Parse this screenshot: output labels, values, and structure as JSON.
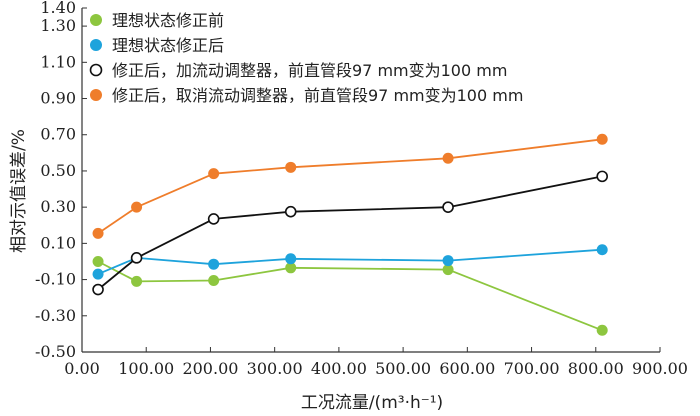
{
  "chart_data": {
    "type": "line",
    "xlabel": "工况流量/(m³·h⁻¹)",
    "ylabel": "相对示值误差/%",
    "xlim": [
      0,
      900
    ],
    "ylim": [
      -0.5,
      1.4
    ],
    "x_ticks": [
      "0.00",
      "100.00",
      "200.00",
      "300.00",
      "400.00",
      "500.00",
      "600.00",
      "700.00",
      "800.00",
      "900.00"
    ],
    "y_ticks": [
      "1.40",
      "1.30",
      "1.10",
      "0.90",
      "0.70",
      "0.50",
      "0.30",
      "0.10",
      "-0.10",
      "-0.30",
      "-0.50"
    ],
    "y_tick_values": [
      1.4,
      1.3,
      1.1,
      0.9,
      0.7,
      0.5,
      0.3,
      0.1,
      -0.1,
      -0.3,
      -0.5
    ],
    "grid": false,
    "legend_position": "top-left",
    "series": [
      {
        "name": "理想状态修正前",
        "color": "#8dc63f",
        "marker": "filled",
        "x": [
          25,
          85,
          205,
          325,
          570,
          810
        ],
        "y": [
          0.0,
          -0.11,
          -0.105,
          -0.035,
          -0.045,
          -0.38
        ]
      },
      {
        "name": "理想状态修正后",
        "color": "#1ea3dc",
        "marker": "filled",
        "x": [
          25,
          85,
          205,
          325,
          570,
          810
        ],
        "y": [
          -0.07,
          0.02,
          -0.015,
          0.015,
          0.005,
          0.065
        ]
      },
      {
        "name": "修正后，加流动调整器，前直管段97 mm变为100 mm",
        "color": "#111111",
        "marker": "open",
        "x": [
          25,
          85,
          205,
          325,
          570,
          810
        ],
        "y": [
          -0.155,
          0.02,
          0.235,
          0.275,
          0.3,
          0.47
        ]
      },
      {
        "name": "修正后，取消流动调整器，前直管段97 mm变为100 mm",
        "color": "#ef7d2b",
        "marker": "filled",
        "x": [
          25,
          85,
          205,
          325,
          570,
          810
        ],
        "y": [
          0.155,
          0.3,
          0.485,
          0.52,
          0.57,
          0.675
        ]
      }
    ]
  }
}
